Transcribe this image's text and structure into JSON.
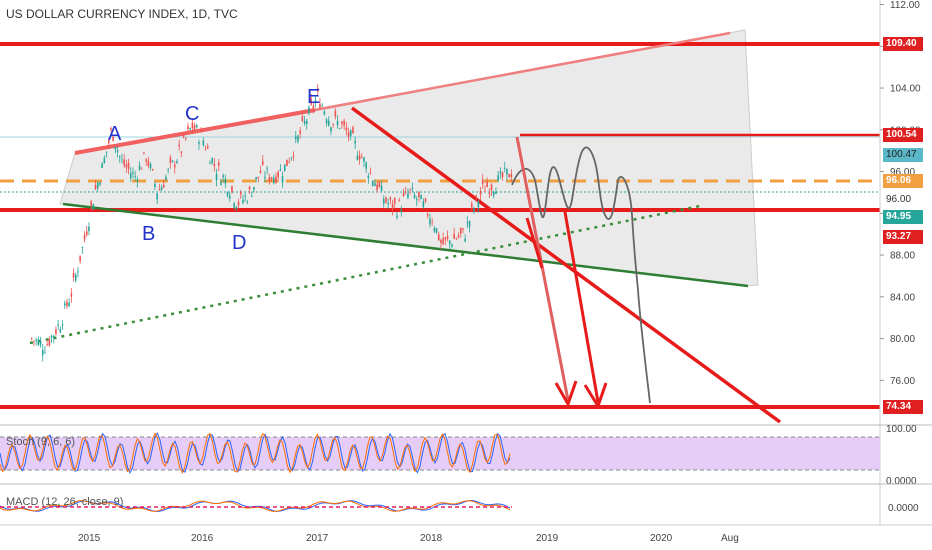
{
  "header": {
    "title": "US DOLLAR CURRENCY INDEX, 1D, TVC"
  },
  "indicators": {
    "stoch_label": "Stoch (9, 6, 6)",
    "macd_label": "MACD (12, 26, close, 9)"
  },
  "chart_data": {
    "type": "candlestick",
    "title": "US DOLLAR CURRENCY INDEX, 1D, TVC",
    "y_ticks": [
      "112.00",
      "108.00",
      "104.00",
      "100.00",
      "96.00",
      "92.00",
      "88.00",
      "84.00",
      "80.00",
      "76.00"
    ],
    "y_tick_values": [
      112,
      108,
      104,
      100,
      96,
      92,
      88,
      84,
      80,
      76
    ],
    "ylim": [
      73,
      113
    ],
    "x_ticks": [
      "2015",
      "2016",
      "2017",
      "2018",
      "2019",
      "2020",
      "Aug"
    ],
    "price_labels": [
      {
        "label": "109.40",
        "value": 109.4,
        "color": "#e02020"
      },
      {
        "label": "100.54",
        "value": 100.54,
        "color": "#e02020"
      },
      {
        "label": "100.47",
        "value": 100.47,
        "color": "#5bb8c8"
      },
      {
        "label": "96.06",
        "value": 96.06,
        "color": "#f0a040"
      },
      {
        "label": "96.00",
        "value": 96.0,
        "color": "#ffffff"
      },
      {
        "label": "94.95",
        "value": 94.95,
        "color": "#26a69a"
      },
      {
        "label": "93.27",
        "value": 93.27,
        "color": "#e02020"
      },
      {
        "label": "74.34",
        "value": 74.34,
        "color": "#e02020"
      }
    ],
    "wave_labels": [
      "A",
      "B",
      "C",
      "D",
      "E"
    ],
    "stoch_ticks": [
      "100.00",
      "0.0000"
    ],
    "macd_ticks": [
      "0.0000"
    ],
    "price_path": [
      [
        "2014.50",
        80.0
      ],
      [
        "2014.62",
        79.3
      ],
      [
        "2014.75",
        81.5
      ],
      [
        "2014.85",
        84.5
      ],
      [
        "2014.95",
        89.0
      ],
      [
        "2015.05",
        94.0
      ],
      [
        "2015.12",
        96.5
      ],
      [
        "2015.20",
        100.0
      ],
      [
        "2015.28",
        97.0
      ],
      [
        "2015.40",
        95.5
      ],
      [
        "2015.50",
        97.5
      ],
      [
        "2015.60",
        94.0
      ],
      [
        "2015.70",
        96.0
      ],
      [
        "2015.80",
        98.0
      ],
      [
        "2015.90",
        100.4
      ],
      [
        "2016.00",
        99.0
      ],
      [
        "2016.10",
        96.5
      ],
      [
        "2016.20",
        95.0
      ],
      [
        "2016.30",
        93.0
      ],
      [
        "2016.40",
        93.8
      ],
      [
        "2016.50",
        96.0
      ],
      [
        "2016.60",
        95.5
      ],
      [
        "2016.70",
        96.2
      ],
      [
        "2016.80",
        98.5
      ],
      [
        "2016.90",
        101.0
      ],
      [
        "2017.00",
        103.2
      ],
      [
        "2017.10",
        101.0
      ],
      [
        "2017.20",
        100.5
      ],
      [
        "2017.30",
        99.0
      ],
      [
        "2017.40",
        97.0
      ],
      [
        "2017.50",
        95.0
      ],
      [
        "2017.60",
        93.0
      ],
      [
        "2017.70",
        92.5
      ],
      [
        "2017.80",
        94.0
      ],
      [
        "2017.90",
        93.0
      ],
      [
        "2018.00",
        91.5
      ],
      [
        "2018.08",
        89.0
      ],
      [
        "2018.18",
        89.5
      ],
      [
        "2018.28",
        90.0
      ],
      [
        "2018.36",
        92.5
      ],
      [
        "2018.45",
        94.5
      ],
      [
        "2018.55",
        94.8
      ],
      [
        "2018.62",
        95.5
      ],
      [
        "2018.70",
        96.06
      ]
    ]
  },
  "colors": {
    "resistance": "#e81b1b",
    "trendline_red_light": "#f08080",
    "support_green": "#2e7d32",
    "dotted_green": "#388e3c",
    "dashed_orange": "#f0a040",
    "wedge_fill": "#dcdcdc",
    "stoch_bg": "#e6cdf7",
    "projection": "#666666",
    "candle_up": "#26a69a",
    "candle_down": "#ef5350"
  }
}
